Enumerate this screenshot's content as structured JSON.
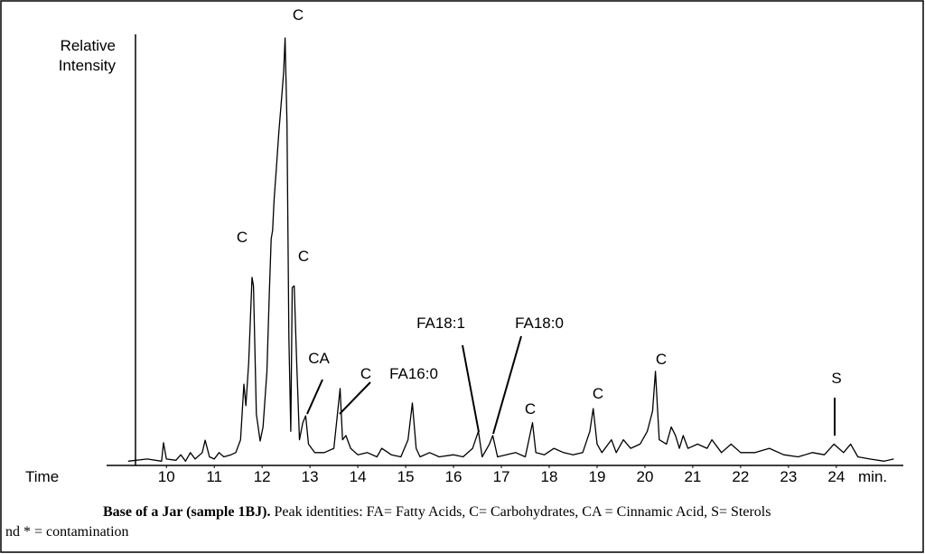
{
  "chart_data": {
    "type": "line",
    "y_label": "Relative Intensity",
    "x_label": "Time",
    "x_unit": "min.",
    "color": "#000000",
    "xlim": [
      8.75,
      25.4
    ],
    "ylim": [
      0,
      100
    ],
    "xticks": [
      10,
      11,
      12,
      13,
      14,
      15,
      16,
      17,
      18,
      19,
      20,
      21,
      22,
      23,
      24
    ],
    "x": [
      9.2,
      9.6,
      9.9,
      9.94,
      10.0,
      10.2,
      10.3,
      10.4,
      10.5,
      10.6,
      10.75,
      10.81,
      10.9,
      11.0,
      11.1,
      11.2,
      11.35,
      11.45,
      11.55,
      11.62,
      11.66,
      11.72,
      11.79,
      11.82,
      11.88,
      11.96,
      12.02,
      12.1,
      12.15,
      12.19,
      12.22,
      12.25,
      12.3,
      12.35,
      12.4,
      12.45,
      12.48,
      12.52,
      12.56,
      12.6,
      12.63,
      12.67,
      12.72,
      12.78,
      12.85,
      12.91,
      12.97,
      13.1,
      13.3,
      13.5,
      13.63,
      13.68,
      13.75,
      13.85,
      14.0,
      14.2,
      14.4,
      14.5,
      14.7,
      14.9,
      15.05,
      15.14,
      15.22,
      15.3,
      15.5,
      15.7,
      16.0,
      16.2,
      16.4,
      16.52,
      16.6,
      16.75,
      16.82,
      16.92,
      17.1,
      17.3,
      17.5,
      17.65,
      17.72,
      17.9,
      18.1,
      18.3,
      18.5,
      18.7,
      18.85,
      18.92,
      19.0,
      19.1,
      19.3,
      19.4,
      19.55,
      19.7,
      19.9,
      20.05,
      20.12,
      20.16,
      20.22,
      20.3,
      20.45,
      20.55,
      20.64,
      20.72,
      20.8,
      20.9,
      21.1,
      21.3,
      21.4,
      21.6,
      21.8,
      22.0,
      22.3,
      22.6,
      22.9,
      23.2,
      23.5,
      23.75,
      23.95,
      24.05,
      24.15,
      24.3,
      24.45,
      24.7,
      25.0,
      25.2
    ],
    "values": [
      1,
      1.5,
      1,
      5.3,
      1.5,
      1.2,
      2.5,
      1,
      3,
      1.5,
      3,
      5.9,
      2,
      1.5,
      3,
      2,
      2.5,
      3,
      6,
      19,
      14,
      24,
      44,
      42,
      12,
      5.7,
      9,
      22,
      40,
      53,
      55,
      62,
      70,
      78,
      85,
      92,
      100,
      80,
      30,
      8,
      41.6,
      42,
      25,
      6,
      10,
      11.6,
      5,
      3,
      3,
      4,
      18,
      6,
      7,
      4,
      2.5,
      3,
      2,
      4,
      2.5,
      2,
      6,
      14.6,
      4,
      2,
      3,
      2,
      2.5,
      2,
      4,
      8,
      2,
      5,
      7,
      2,
      2.5,
      3,
      2,
      10,
      3,
      2.5,
      4,
      3,
      2.5,
      3,
      8,
      13.3,
      5,
      3,
      6,
      3,
      6,
      4,
      5,
      8,
      11,
      12.7,
      22,
      6,
      5,
      9,
      7,
      4,
      7,
      4,
      5,
      4,
      6,
      3,
      5,
      3,
      3,
      4,
      2.5,
      2,
      3,
      2.5,
      5,
      4,
      3,
      5,
      2,
      1.5,
      1,
      1.5
    ],
    "annotations": [
      "C",
      "C",
      "C",
      "CA",
      "C",
      "FA16:0",
      "FA18:1",
      "FA18:0",
      "C",
      "C",
      "C",
      "S"
    ]
  },
  "caption": {
    "bold": "Base of a Jar (sample 1BJ).",
    "text": "Peak identities: FA= Fatty Acids, C= Carbohydrates, CA = Cinnamic Acid, S= Sterols",
    "line2": "nd * = contamination"
  }
}
